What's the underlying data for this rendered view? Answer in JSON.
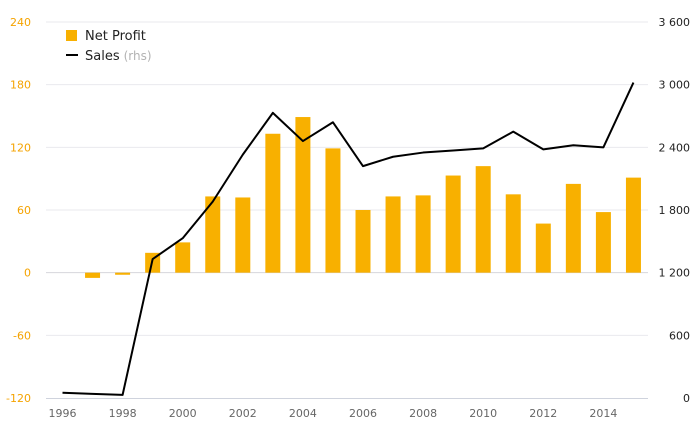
{
  "chart_data": {
    "type": "bar",
    "secondary_type": "line",
    "x": [
      1996,
      1997,
      1998,
      1999,
      2000,
      2001,
      2002,
      2003,
      2004,
      2005,
      2006,
      2007,
      2008,
      2009,
      2010,
      2011,
      2012,
      2013,
      2014,
      2015
    ],
    "series": [
      {
        "name": "Net Profit",
        "type": "bar",
        "axis": "left",
        "color": "#f8b000",
        "values": [
          null,
          -5,
          -2,
          19,
          29,
          73,
          72,
          133,
          149,
          119,
          60,
          73,
          74,
          93,
          102,
          75,
          47,
          85,
          58,
          91
        ]
      },
      {
        "name": "Sales",
        "legend_suffix": "(rhs)",
        "type": "line",
        "axis": "right",
        "color": "#000000",
        "values": [
          50,
          40,
          30,
          1330,
          1530,
          1880,
          2330,
          2730,
          2460,
          2640,
          2220,
          2310,
          2350,
          2370,
          2390,
          2550,
          2380,
          2420,
          2400,
          3020
        ]
      }
    ],
    "y_left": {
      "ylim": [
        -120,
        240
      ],
      "ticks": [
        -120,
        -60,
        0,
        60,
        120,
        180,
        240
      ],
      "tick_labels": [
        "-120",
        "-60",
        "0",
        "60",
        "120",
        "180",
        "240"
      ],
      "color": "#f5a300"
    },
    "y_right": {
      "ylim": [
        0,
        3600
      ],
      "ticks": [
        0,
        600,
        1200,
        1800,
        2400,
        3000,
        3600
      ],
      "tick_labels": [
        "0",
        "600",
        "1 200",
        "1 800",
        "2 400",
        "3 000",
        "3 600"
      ]
    },
    "x_ticks": [
      1996,
      1998,
      2000,
      2002,
      2004,
      2006,
      2008,
      2010,
      2012,
      2014
    ],
    "x_tick_labels": [
      "1996",
      "1998",
      "2000",
      "2002",
      "2004",
      "2006",
      "2008",
      "2010",
      "2012",
      "2014"
    ],
    "grid": true,
    "legend_position": "top-left"
  }
}
